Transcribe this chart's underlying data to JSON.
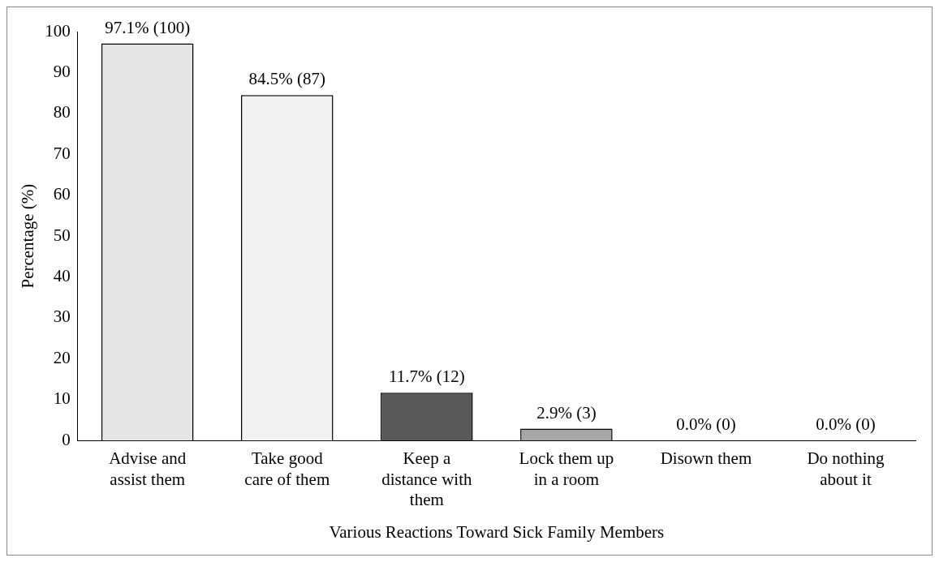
{
  "chart_data": {
    "type": "bar",
    "xlabel": "Various Reactions Toward Sick Family Members",
    "ylabel": "Percentage (%)",
    "categories": [
      "Advise and assist them",
      "Take good care of them",
      "Keep a distance with them",
      "Lock them up in a room",
      "Disown them",
      "Do nothing about it"
    ],
    "values": [
      97.1,
      84.5,
      11.7,
      2.9,
      0,
      0
    ],
    "colors": [
      "#e6e6e6",
      "#f2f2f2",
      "#595959",
      "#a6a6a6",
      "#ffffff",
      "#ffffff"
    ],
    "value_labels": [
      "97.1% (100)",
      "84.5% (87)",
      "11.7% (12)",
      "2.9% (3)",
      "0.0% (0)",
      "0.0% (0)"
    ],
    "ylim": [
      0,
      100
    ],
    "yticks": [
      0,
      10,
      20,
      30,
      40,
      50,
      60,
      70,
      80,
      90,
      100
    ],
    "grid": false,
    "legend": false
  }
}
